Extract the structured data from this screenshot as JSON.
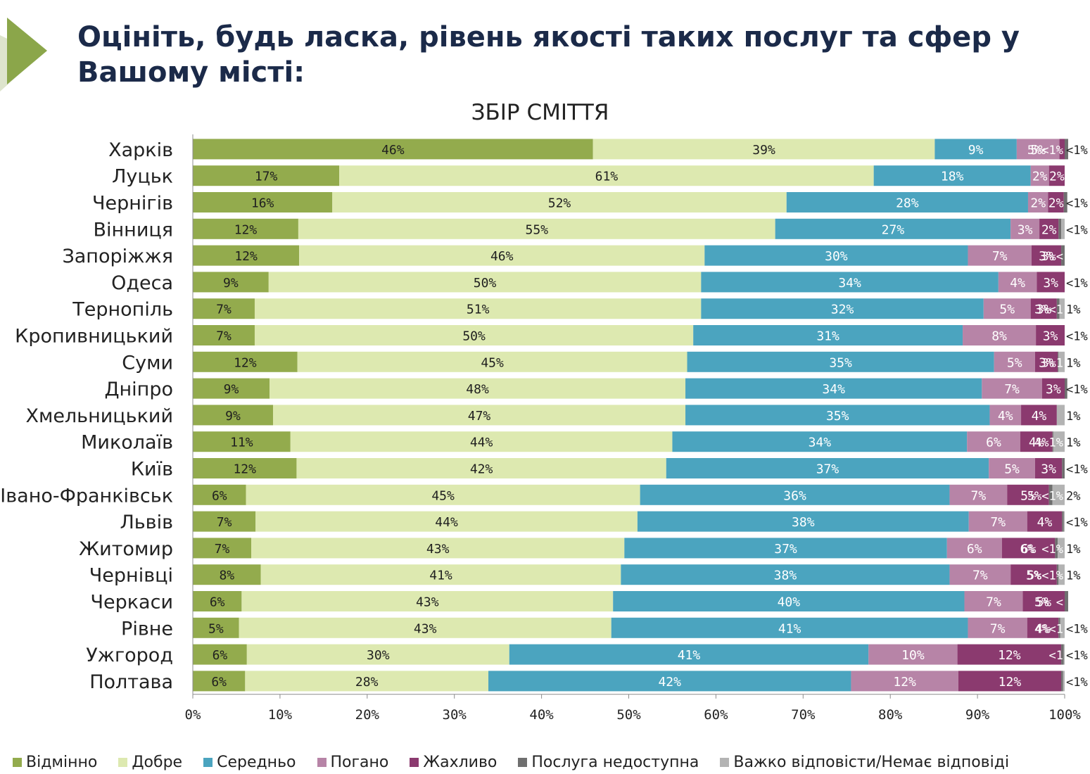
{
  "page": {
    "title": "Оцініть, будь ласка, рівень якості таких послуг та сфер у Вашому місті:",
    "accent_color": "#8ba64a"
  },
  "chart_data": {
    "type": "bar",
    "orientation": "horizontal",
    "stacked": true,
    "title": "ЗБІР СМІТТЯ",
    "xlim": [
      0,
      100
    ],
    "x_ticks": [
      "0%",
      "10%",
      "20%",
      "30%",
      "40%",
      "50%",
      "60%",
      "70%",
      "80%",
      "90%",
      "100%"
    ],
    "grid": false,
    "legend_position": "bottom",
    "categories": [
      "Харків",
      "Луцьк",
      "Чернігів",
      "Вінниця",
      "Запоріжжя",
      "Одеса",
      "Тернопіль",
      "Кропивницький",
      "Суми",
      "Дніпро",
      "Хмельницький",
      "Миколаїв",
      "Київ",
      "Івано-Франківськ",
      "Львів",
      "Житомир",
      "Чернівці",
      "Черкаси",
      "Рівне",
      "Ужгород",
      "Полтава"
    ],
    "series": [
      {
        "name": "Відмінно",
        "color": "#93ab4d",
        "label_color": "#1f1f1f",
        "values": [
          45.9,
          16.8,
          16.0,
          12.1,
          12.2,
          8.7,
          7.1,
          7.1,
          12.0,
          8.8,
          9.2,
          11.2,
          11.9,
          6.1,
          7.2,
          6.7,
          7.8,
          5.6,
          5.3,
          6.2,
          6.0
        ],
        "labels": [
          "46%",
          "17%",
          "16%",
          "12%",
          "12%",
          "9%",
          "7%",
          "7%",
          "12%",
          "9%",
          "9%",
          "11%",
          "12%",
          "6%",
          "7%",
          "7%",
          "8%",
          "6%",
          "5%",
          "6%",
          "6%"
        ]
      },
      {
        "name": "Добре",
        "color": "#dde9b0",
        "label_color": "#1f1f1f",
        "values": [
          39.2,
          61.3,
          52.1,
          54.7,
          46.5,
          49.6,
          51.2,
          50.3,
          44.7,
          47.7,
          47.3,
          43.8,
          42.4,
          45.2,
          43.8,
          42.8,
          41.3,
          42.6,
          42.7,
          30.1,
          27.9
        ],
        "labels": [
          "39%",
          "61%",
          "52%",
          "55%",
          "46%",
          "50%",
          "51%",
          "50%",
          "45%",
          "48%",
          "47%",
          "44%",
          "42%",
          "45%",
          "44%",
          "43%",
          "41%",
          "43%",
          "43%",
          "30%",
          "28%"
        ]
      },
      {
        "name": "Середньо",
        "color": "#4ba4bf",
        "label_color": "#ffffff",
        "values": [
          9.4,
          18.0,
          27.7,
          27.0,
          30.2,
          34.1,
          32.4,
          30.9,
          35.2,
          34.0,
          34.9,
          33.8,
          37.0,
          35.5,
          38.0,
          37.0,
          37.7,
          40.3,
          40.9,
          41.2,
          41.6
        ],
        "labels": [
          "9%",
          "18%",
          "28%",
          "27%",
          "30%",
          "34%",
          "32%",
          "31%",
          "35%",
          "34%",
          "35%",
          "34%",
          "37%",
          "36%",
          "38%",
          "37%",
          "38%",
          "40%",
          "41%",
          "41%",
          "42%"
        ]
      },
      {
        "name": "Погано",
        "color": "#b784a7",
        "label_color": "#ffffff",
        "values": [
          4.9,
          2.1,
          2.3,
          3.3,
          7.3,
          4.4,
          5.4,
          8.4,
          4.7,
          6.9,
          3.6,
          6.1,
          5.3,
          6.6,
          6.7,
          6.3,
          7.0,
          6.7,
          6.8,
          10.2,
          12.3
        ],
        "labels": [
          "5%",
          "2%",
          "2%",
          "3%",
          "7%",
          "4%",
          "5%",
          "8%",
          "5%",
          "7%",
          "4%",
          "6%",
          "5%",
          "7%",
          "7%",
          "6%",
          "7%",
          "7%",
          "7%",
          "10%",
          "12%"
        ]
      },
      {
        "name": "Жахливо",
        "color": "#8b3a6f",
        "label_color": "#ffffff",
        "values": [
          0.6,
          1.8,
          1.8,
          2.2,
          3.4,
          3.2,
          3.0,
          3.3,
          2.6,
          2.6,
          4.1,
          3.7,
          3.1,
          4.8,
          4.0,
          6.1,
          5.3,
          4.8,
          3.6,
          11.9,
          11.8
        ],
        "labels": [
          "<1%",
          "2%",
          "2%",
          "2%",
          "3%",
          "3%",
          "3%",
          "3%",
          "3%",
          "3%",
          "4%",
          "4%",
          "3%",
          "5%",
          "4%",
          "6%",
          "5%",
          "5%",
          "4%",
          "12%",
          "12%"
        ]
      },
      {
        "name": "Послуга недоступна",
        "color": "#6f6f6f",
        "label_color": "#ffffff",
        "values": [
          0.4,
          0,
          0.4,
          0.3,
          0.4,
          0,
          0.3,
          0,
          0.1,
          0.3,
          0,
          0.1,
          0.3,
          0.4,
          0.2,
          0.3,
          0.2,
          0.4,
          0.2,
          0.3,
          0.2
        ],
        "labels": [
          "",
          "",
          "",
          "",
          "",
          "",
          "",
          "",
          "",
          "",
          "",
          "",
          "",
          "",
          "",
          "",
          "",
          "",
          "",
          "",
          ""
        ]
      },
      {
        "name": "Важко відповісти/Немає відповіді",
        "color": "#b3b3b3",
        "label_color": "#ffffff",
        "values": [
          0,
          0,
          0,
          0.4,
          0,
          0,
          0.6,
          0,
          0.7,
          0,
          0.9,
          1.3,
          0,
          1.4,
          0.1,
          0.8,
          0.7,
          0,
          0.5,
          0.1,
          0.2
        ],
        "labels": [
          "",
          "",
          "",
          "",
          "",
          "",
          "",
          "",
          "",
          "",
          "",
          "",
          "",
          "",
          "",
          "",
          "",
          "",
          "",
          "",
          ""
        ]
      }
    ],
    "end_labels": [
      "<1%",
      "",
      "<1%",
      "<1%",
      "",
      "<1%",
      "1%",
      "<1%",
      "1%",
      "<1%",
      "1%",
      "1%",
      "<1%",
      "2%",
      "<1%",
      "1%",
      "1%",
      "",
      "<1%",
      "<1%",
      "<1%"
    ],
    "row_annotations": [
      "5%<1%",
      "",
      "",
      "",
      "3%<",
      "",
      "3%<1",
      "",
      "3%1",
      "",
      "",
      "4%1%",
      "",
      "5%<1%",
      "",
      "6% <1%",
      "5%<1%",
      "5% <",
      "4%<1",
      "<1",
      ""
    ]
  }
}
